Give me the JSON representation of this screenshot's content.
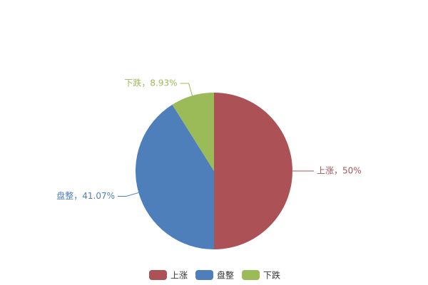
{
  "chart_data": {
    "type": "pie",
    "categories": [
      "上涨",
      "盘整",
      "下跌"
    ],
    "values": [
      50,
      41.07,
      8.93
    ],
    "value_labels": [
      "上涨，50%",
      "盘整，41.07%",
      "下跌，8.93%"
    ],
    "colors": [
      "#ac5257",
      "#4e7fbb",
      "#9bbb59"
    ],
    "legend": "bottom"
  }
}
